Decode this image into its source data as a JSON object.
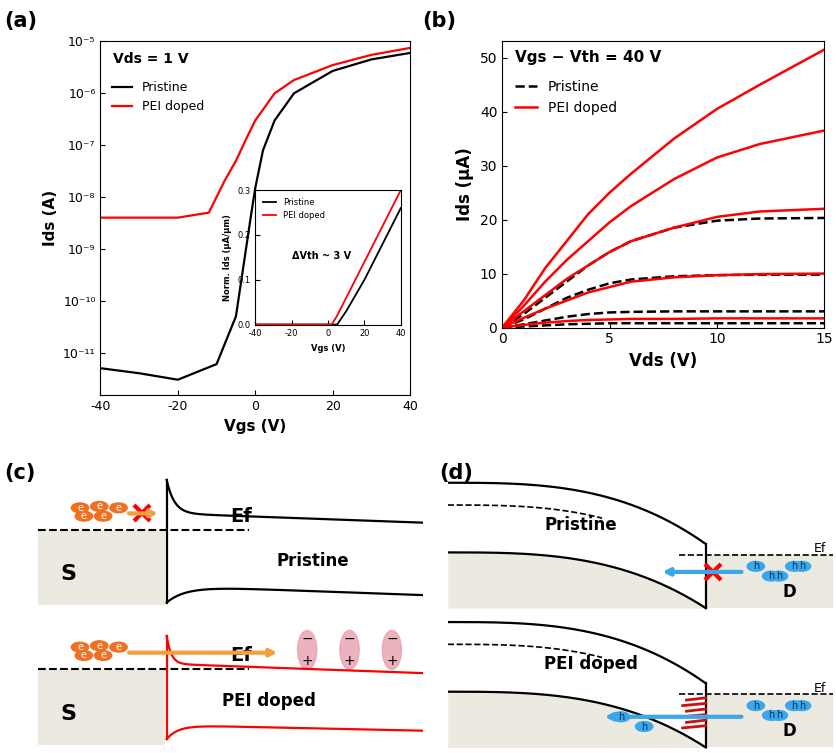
{
  "chart_data": [
    {
      "type": "line",
      "title": "(a)",
      "x_label": "Vgs (V)",
      "y_label": "Ids (A)",
      "annotations": [
        "Vds = 1 V"
      ],
      "log": "y",
      "grid": false,
      "legend": "upper left",
      "xlim": [
        -40,
        40
      ],
      "xticks": [
        -40,
        -20,
        0,
        20,
        40
      ],
      "ylim": [
        1.5e-12,
        1e-05
      ],
      "yticks": [
        {
          "value": 1e-11,
          "label": "10⁻¹¹"
        },
        {
          "value": 1e-10,
          "label": "10⁻¹⁰"
        },
        {
          "value": 1e-09,
          "label": "10⁻⁹"
        },
        {
          "value": 1e-08,
          "label": "10⁻⁸"
        },
        {
          "value": 1e-07,
          "label": "10⁻⁷"
        },
        {
          "value": 1e-06,
          "label": "10⁻⁶"
        },
        {
          "value": 1e-05,
          "label": "10⁻⁵"
        }
      ],
      "series": [
        {
          "name": "Pristine",
          "color": "#000000",
          "line_style": "solid",
          "x": [
            -40,
            -30,
            -20,
            -10,
            -5,
            -3,
            -1,
            0,
            2,
            5,
            10,
            20,
            30,
            40
          ],
          "values": [
            5e-12,
            4e-12,
            3e-12,
            6e-12,
            5e-11,
            5e-10,
            5e-09,
            1.5e-08,
            8e-08,
            3e-07,
            1e-06,
            2.7e-06,
            4.5e-06,
            6e-06
          ]
        },
        {
          "name": "PEI doped",
          "color": "#ff0000",
          "line_style": "solid",
          "x": [
            -40,
            -20,
            -12,
            -10,
            -8,
            -5,
            -2,
            0,
            5,
            10,
            20,
            30,
            40
          ],
          "values": [
            4e-09,
            4e-09,
            5e-09,
            1e-08,
            2e-08,
            5e-08,
            1.5e-07,
            3e-07,
            1e-06,
            1.8e-06,
            3.5e-06,
            5.5e-06,
            7.5e-06
          ]
        }
      ]
    },
    {
      "type": "line",
      "x_label": "Vgs (V)",
      "y_label": "Norm. Ids (μA/μm)",
      "annotations": [
        "ΔVth ~ 3 V"
      ],
      "grid": false,
      "legend": "upper left",
      "xlim": [
        -40,
        40
      ],
      "xticks": [
        -40,
        -20,
        0,
        20,
        40
      ],
      "ylim": [
        0,
        0.3
      ],
      "yticks": [
        {
          "value": 0,
          "label": "0.0"
        },
        {
          "value": 0.1,
          "label": "0.1"
        },
        {
          "value": 0.2,
          "label": "0.2"
        },
        {
          "value": 0.3,
          "label": "0.3"
        }
      ],
      "series": [
        {
          "name": "Pristine",
          "color": "#000000",
          "line_style": "solid",
          "x": [
            -40,
            0,
            2,
            5,
            10,
            20,
            30,
            40
          ],
          "values": [
            0,
            0,
            0,
            0,
            0.03,
            0.1,
            0.18,
            0.26
          ]
        },
        {
          "name": "PEI doped",
          "color": "#ff0000",
          "line_style": "solid",
          "x": [
            -40,
            0,
            2,
            5,
            10,
            20,
            30,
            40
          ],
          "values": [
            0,
            0,
            0,
            0.02,
            0.06,
            0.14,
            0.22,
            0.3
          ]
        }
      ]
    },
    {
      "type": "line",
      "title": "(b)",
      "x_label": "Vds (V)",
      "y_label": "Ids (μA)",
      "annotations": [
        "Vgs − Vth = 40 V"
      ],
      "grid": false,
      "legend": "upper left",
      "xlim": [
        0,
        15
      ],
      "xticks": [
        0,
        5,
        10,
        15
      ],
      "ylim": [
        0,
        53
      ],
      "yticks": [
        0,
        10,
        20,
        30,
        40,
        50
      ],
      "x": [
        0,
        1,
        2,
        3,
        4,
        5,
        6,
        8,
        10,
        12,
        15
      ],
      "series": [
        {
          "name": "Pristine",
          "color": "#000000",
          "line_style": "dashed",
          "values": [
            0,
            2.5,
            5.5,
            8.5,
            11.5,
            14,
            16,
            18.5,
            19.8,
            20.2,
            20.3
          ]
        },
        {
          "color": "#000000",
          "line_style": "dashed",
          "values": [
            0,
            1.5,
            3.5,
            5.5,
            7,
            8.2,
            8.9,
            9.5,
            9.7,
            9.8,
            9.8
          ]
        },
        {
          "color": "#000000",
          "line_style": "dashed",
          "values": [
            0,
            0.6,
            1.3,
            2,
            2.5,
            2.8,
            2.9,
            3,
            3,
            3,
            3
          ]
        },
        {
          "color": "#000000",
          "line_style": "dashed",
          "values": [
            0,
            0.2,
            0.4,
            0.6,
            0.7,
            0.8,
            0.8,
            0.8,
            0.8,
            0.8,
            0.8
          ]
        },
        {
          "name": "PEI doped",
          "color": "#ff0000",
          "line_style": "solid",
          "values": [
            0,
            5,
            11,
            16,
            21,
            25,
            28.5,
            35,
            40.5,
            45,
            51.5
          ]
        },
        {
          "color": "#ff0000",
          "line_style": "solid",
          "values": [
            0,
            4,
            8.5,
            12.5,
            16,
            19.5,
            22.5,
            27.5,
            31.5,
            34,
            36.5
          ]
        },
        {
          "color": "#ff0000",
          "line_style": "solid",
          "values": [
            0,
            3,
            6,
            9,
            11.5,
            14,
            16,
            18.5,
            20.5,
            21.5,
            22
          ]
        },
        {
          "color": "#ff0000",
          "line_style": "solid",
          "values": [
            0,
            1.8,
            3.5,
            5,
            6.5,
            7.5,
            8.5,
            9.3,
            9.7,
            9.9,
            10
          ]
        },
        {
          "color": "#ff0000",
          "line_style": "solid",
          "values": [
            0,
            0.5,
            0.9,
            1.2,
            1.4,
            1.5,
            1.6,
            1.6,
            1.7,
            1.7,
            1.7
          ]
        }
      ]
    }
  ],
  "diagrams": {
    "c": {
      "label": "(c)",
      "top": {
        "title": "Pristine",
        "contact": "S",
        "fermi": "Ef",
        "carrier": "e"
      },
      "bottom": {
        "title": "PEI doped",
        "contact": "S",
        "fermi": "Ef",
        "carrier": "e",
        "dipole": [
          "−",
          "+"
        ]
      }
    },
    "d": {
      "label": "(d)",
      "top": {
        "title": "Pristine",
        "contact": "D",
        "fermi": "Ef",
        "carrier": "h"
      },
      "bottom": {
        "title": "PEI doped",
        "contact": "D",
        "fermi": "Ef",
        "carrier": "h"
      }
    }
  }
}
